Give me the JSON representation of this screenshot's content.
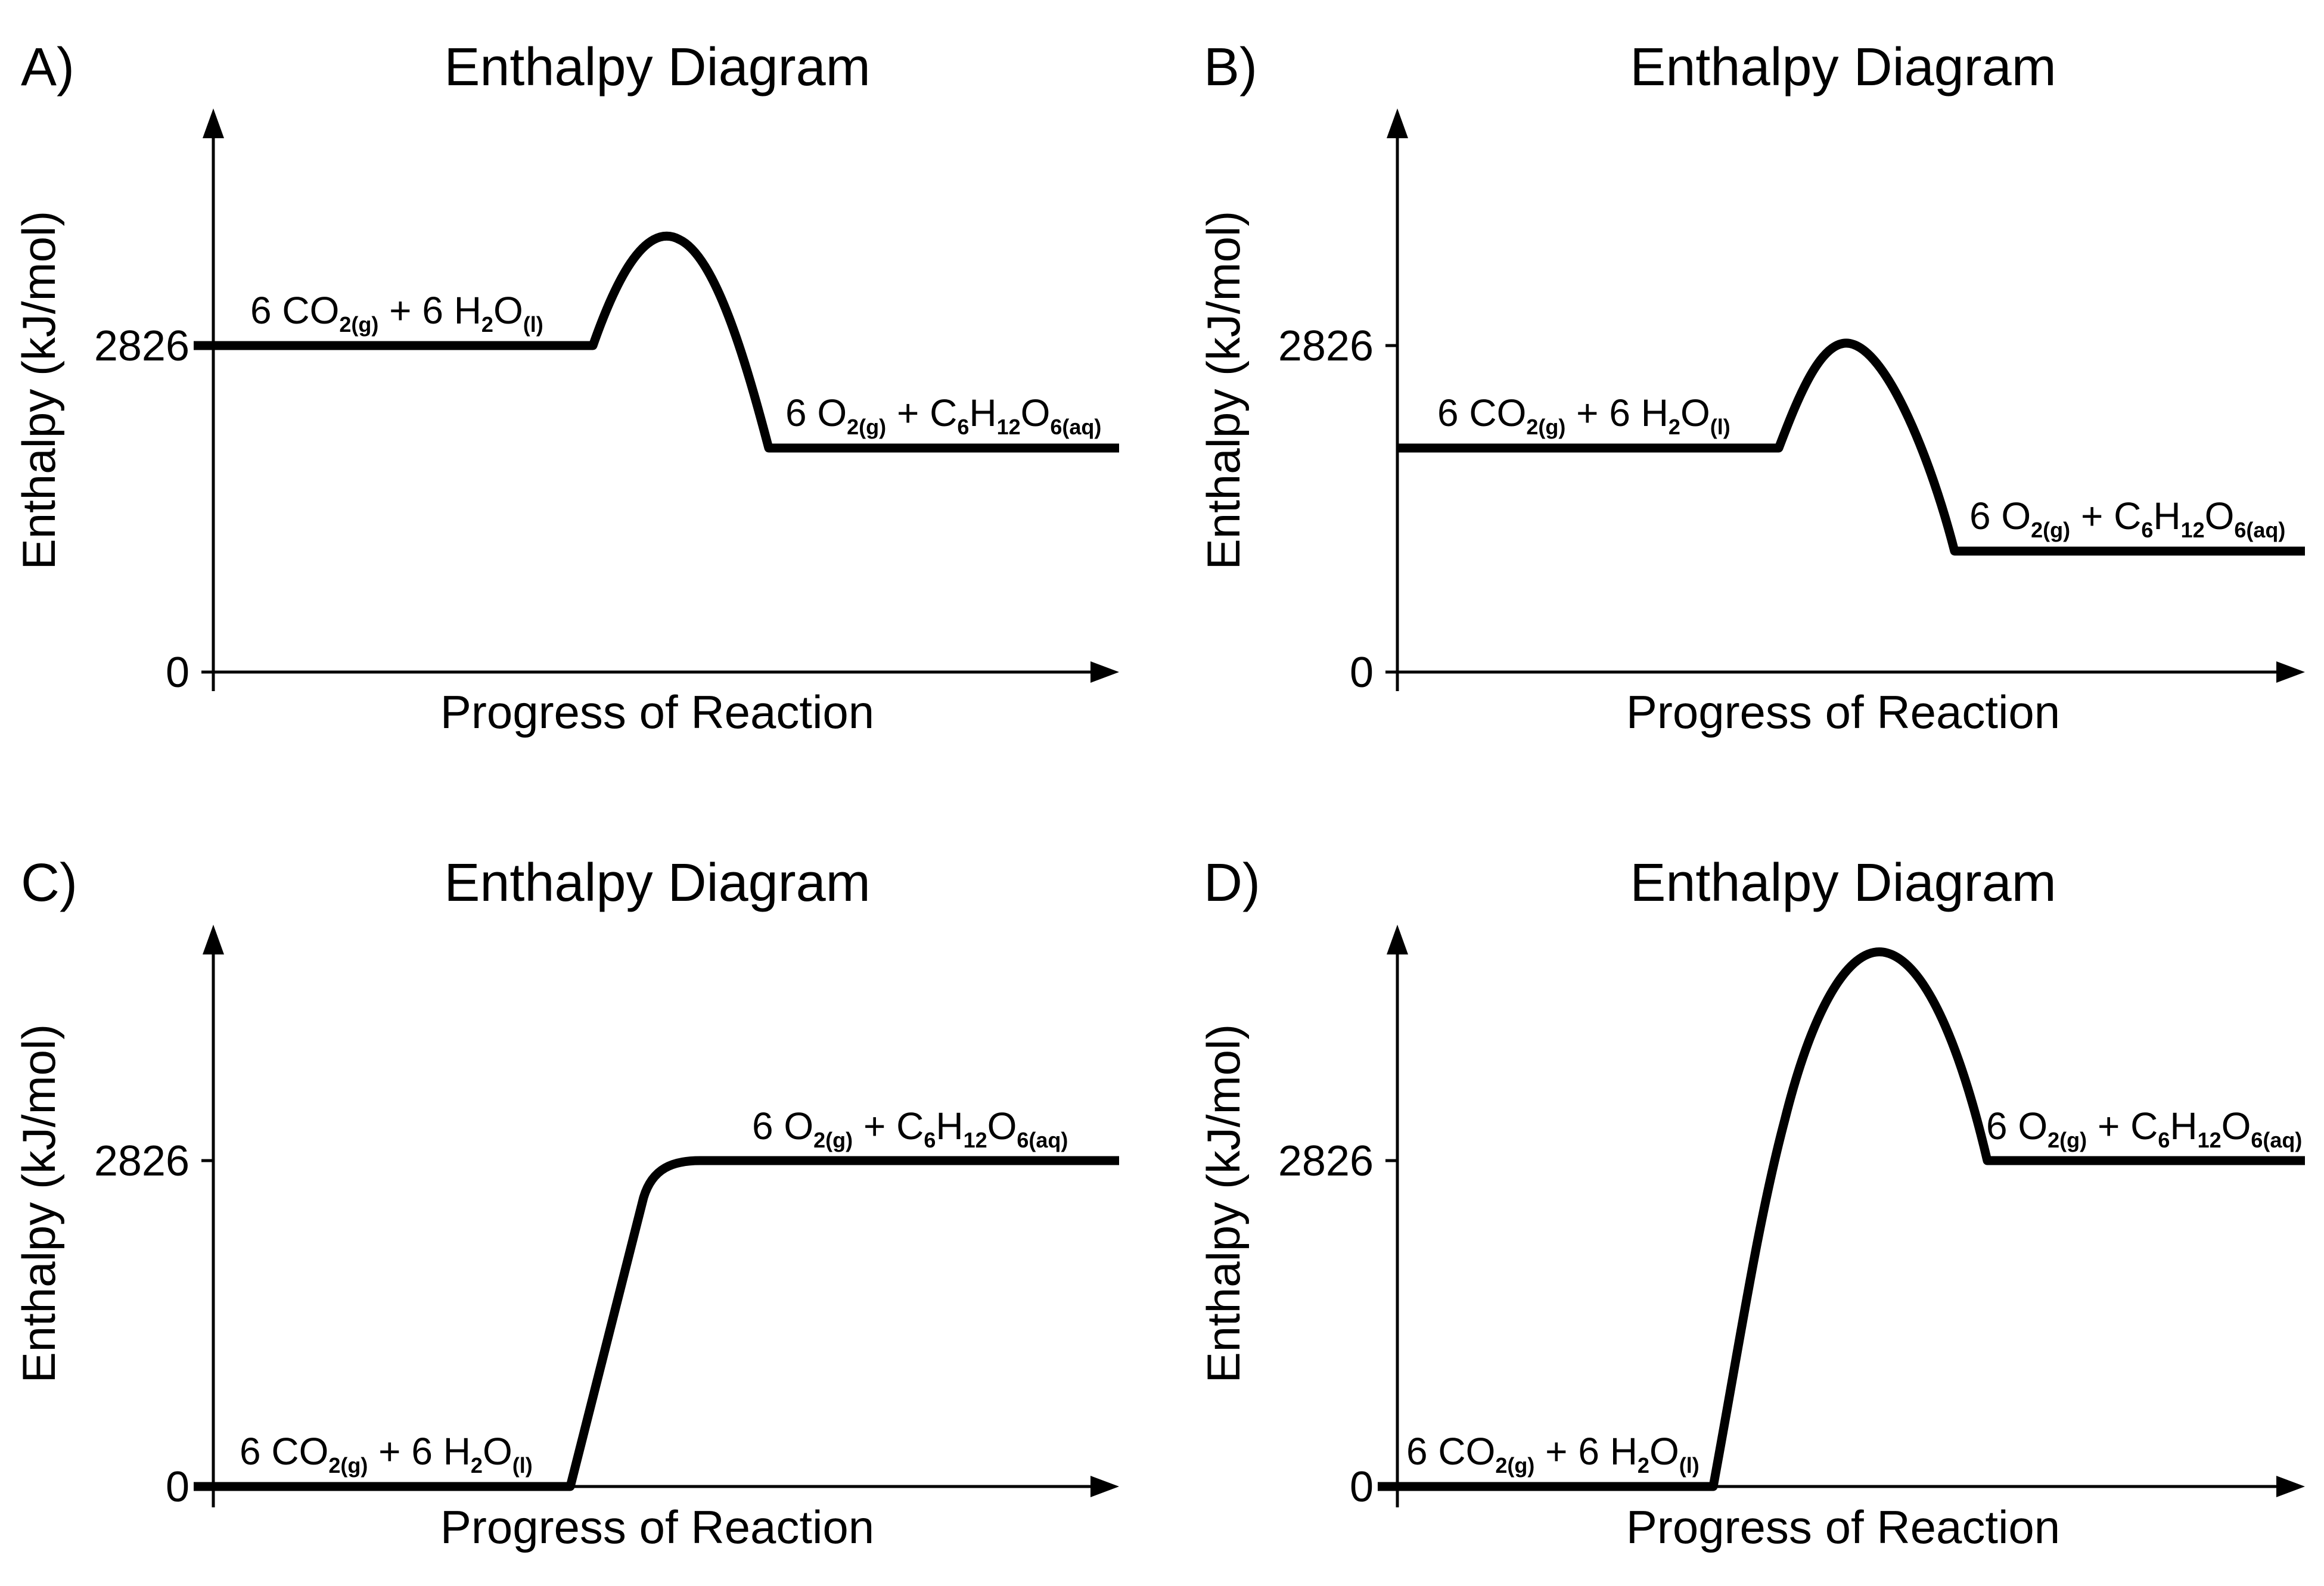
{
  "panels": [
    {
      "letter": "A)",
      "title": "Enthalpy Diagram",
      "ylabel": "Enthalpy (kJ/mol)",
      "xlabel": "Progress of Reaction",
      "ticks": [
        "2826",
        "0"
      ],
      "reactants": {
        "parts": [
          {
            "t": "6 CO"
          },
          {
            "t": "2(g)",
            "sub": true
          },
          {
            "t": " + 6 H"
          },
          {
            "t": "2",
            "sub": true
          },
          {
            "t": "O"
          },
          {
            "t": "(l)",
            "sub": true
          }
        ]
      },
      "products": {
        "parts": [
          {
            "t": "6 O"
          },
          {
            "t": "2(g)",
            "sub": true
          },
          {
            "t": " + C"
          },
          {
            "t": "6",
            "sub": true
          },
          {
            "t": "H"
          },
          {
            "t": "12",
            "sub": true
          },
          {
            "t": "O"
          },
          {
            "t": "6(aq)",
            "sub": true
          }
        ]
      }
    },
    {
      "letter": "B)",
      "title": "Enthalpy Diagram",
      "ylabel": "Enthalpy (kJ/mol)",
      "xlabel": "Progress of Reaction",
      "ticks": [
        "2826",
        "0"
      ],
      "reactants": {
        "parts": [
          {
            "t": "6 CO"
          },
          {
            "t": "2(g)",
            "sub": true
          },
          {
            "t": " + 6 H"
          },
          {
            "t": "2",
            "sub": true
          },
          {
            "t": "O"
          },
          {
            "t": "(l)",
            "sub": true
          }
        ]
      },
      "products": {
        "parts": [
          {
            "t": "6 O"
          },
          {
            "t": "2(g)",
            "sub": true
          },
          {
            "t": " + C"
          },
          {
            "t": "6",
            "sub": true
          },
          {
            "t": "H"
          },
          {
            "t": "12",
            "sub": true
          },
          {
            "t": "O"
          },
          {
            "t": "6(aq)",
            "sub": true
          }
        ]
      }
    },
    {
      "letter": "C)",
      "title": "Enthalpy Diagram",
      "ylabel": "Enthalpy (kJ/mol)",
      "xlabel": "Progress of Reaction",
      "ticks": [
        "2826",
        "0"
      ],
      "reactants": {
        "parts": [
          {
            "t": "6 CO"
          },
          {
            "t": "2(g)",
            "sub": true
          },
          {
            "t": " + 6 H"
          },
          {
            "t": "2",
            "sub": true
          },
          {
            "t": "O"
          },
          {
            "t": "(l)",
            "sub": true
          }
        ]
      },
      "products": {
        "parts": [
          {
            "t": "6 O"
          },
          {
            "t": "2(g)",
            "sub": true
          },
          {
            "t": " + C"
          },
          {
            "t": "6",
            "sub": true
          },
          {
            "t": "H"
          },
          {
            "t": "12",
            "sub": true
          },
          {
            "t": "O"
          },
          {
            "t": "6(aq)",
            "sub": true
          }
        ]
      }
    },
    {
      "letter": "D)",
      "title": "Enthalpy Diagram",
      "ylabel": "Enthalpy (kJ/mol)",
      "xlabel": "Progress of Reaction",
      "ticks": [
        "2826",
        "0"
      ],
      "reactants": {
        "parts": [
          {
            "t": "6 CO"
          },
          {
            "t": "2(g)",
            "sub": true
          },
          {
            "t": " + 6 H"
          },
          {
            "t": "2",
            "sub": true
          },
          {
            "t": "O"
          },
          {
            "t": "(l)",
            "sub": true
          }
        ]
      },
      "products": {
        "parts": [
          {
            "t": "6 O"
          },
          {
            "t": "2(g)",
            "sub": true
          },
          {
            "t": " + C"
          },
          {
            "t": "6",
            "sub": true
          },
          {
            "t": "H"
          },
          {
            "t": "12",
            "sub": true
          },
          {
            "t": "O"
          },
          {
            "t": "6(aq)",
            "sub": true
          }
        ]
      }
    }
  ]
}
